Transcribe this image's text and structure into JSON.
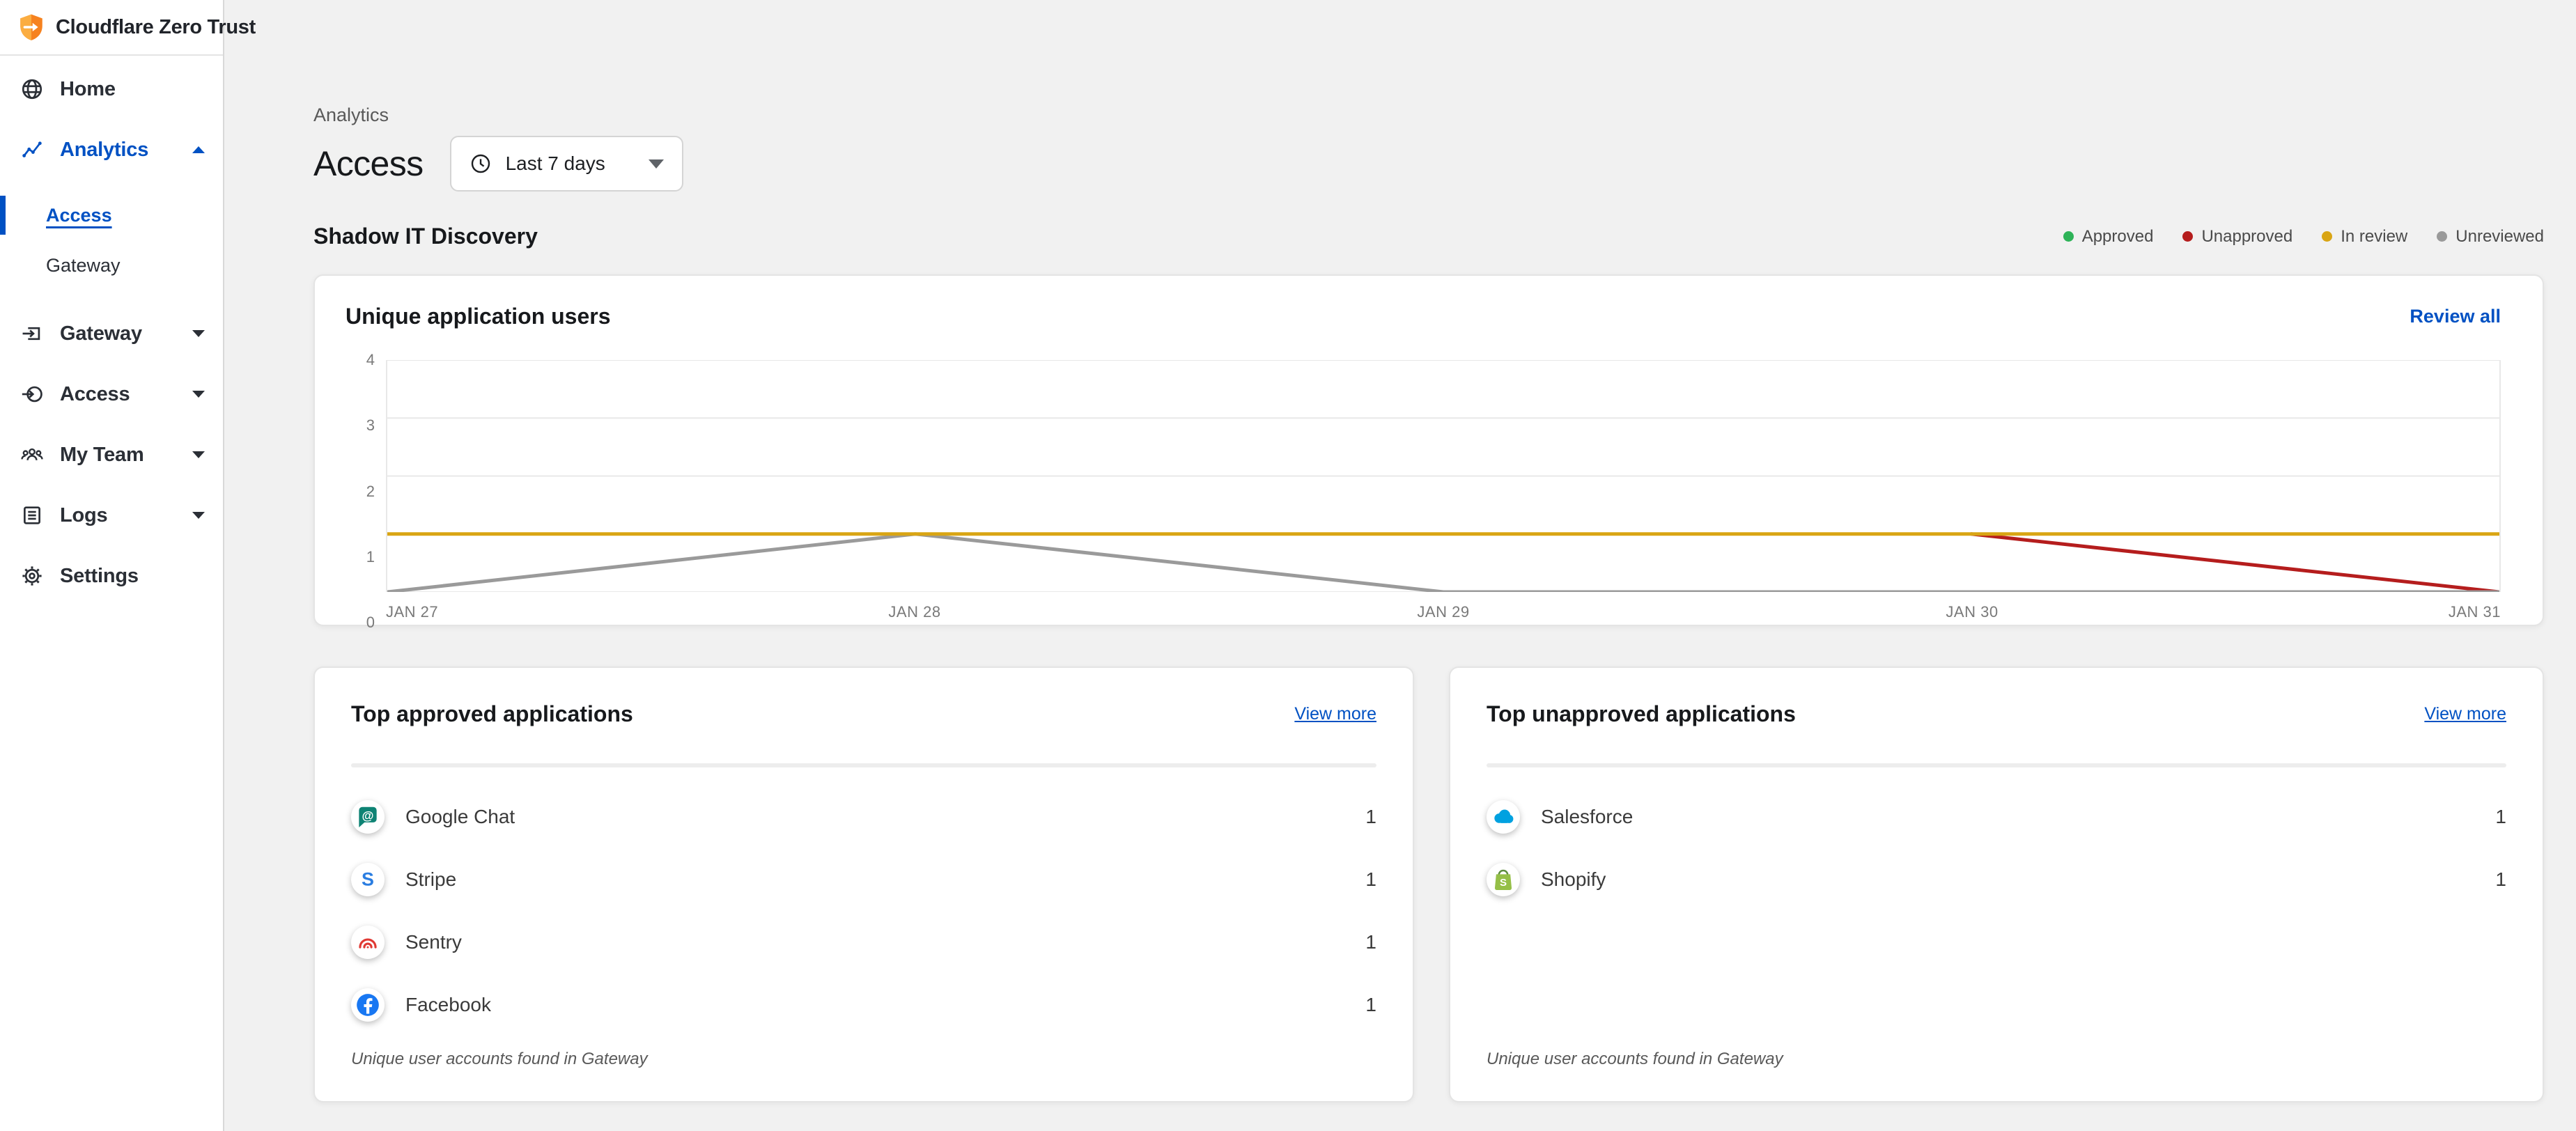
{
  "app": {
    "logo_text": "Cloudflare Zero Trust"
  },
  "colors": {
    "accent_blue": "#0051c3",
    "approved_green": "#2eb358",
    "unapproved_red": "#b51d1d",
    "in_review_yellow": "#d9a514",
    "unreviewed_gray": "#9a9a9a"
  },
  "sidebar": {
    "items": [
      {
        "label": "Home",
        "icon": "globe-icon"
      },
      {
        "label": "Analytics",
        "icon": "analytics-icon",
        "expanded": true,
        "children": [
          {
            "label": "Access",
            "active": true
          },
          {
            "label": "Gateway"
          }
        ]
      },
      {
        "label": "Gateway",
        "icon": "gateway-icon"
      },
      {
        "label": "Access",
        "icon": "access-icon"
      },
      {
        "label": "My Team",
        "icon": "team-icon"
      },
      {
        "label": "Logs",
        "icon": "logs-icon"
      },
      {
        "label": "Settings",
        "icon": "gear-icon"
      }
    ]
  },
  "header": {
    "breadcrumb": "Analytics",
    "title": "Access",
    "time_range": "Last 7 days"
  },
  "shadow_section": {
    "title": "Shadow IT Discovery",
    "legend": [
      {
        "label": "Approved",
        "color": "#2eb358"
      },
      {
        "label": "Unapproved",
        "color": "#b51d1d"
      },
      {
        "label": "In review",
        "color": "#d9a514"
      },
      {
        "label": "Unreviewed",
        "color": "#9a9a9a"
      }
    ]
  },
  "chart_card": {
    "title": "Unique application users",
    "action": "Review all"
  },
  "chart_data": {
    "type": "line",
    "title": "Unique application users",
    "x": [
      "JAN 27",
      "JAN 28",
      "JAN 29",
      "JAN 30",
      "JAN 31"
    ],
    "series": [
      {
        "name": "Approved",
        "color": "#2eb358",
        "values": [
          null,
          null,
          null,
          null,
          null
        ]
      },
      {
        "name": "Unapproved",
        "color": "#b51d1d",
        "values": [
          null,
          null,
          null,
          1,
          0
        ]
      },
      {
        "name": "Unreviewed",
        "color": "#9a9a9a",
        "values": [
          0,
          1,
          0,
          0,
          0
        ]
      },
      {
        "name": "In review",
        "color": "#d9a514",
        "values": [
          1,
          1,
          1,
          1,
          1
        ]
      }
    ],
    "ylim": [
      0,
      4
    ],
    "yticks": [
      0,
      1,
      2,
      3,
      4
    ],
    "grid": true,
    "legend_position": "top-right-outside"
  },
  "approved_card": {
    "title": "Top approved applications",
    "action": "View more",
    "rows": [
      {
        "name": "Google Chat",
        "value": "1",
        "icon": "google-chat-icon"
      },
      {
        "name": "Stripe",
        "value": "1",
        "icon": "stripe-icon"
      },
      {
        "name": "Sentry",
        "value": "1",
        "icon": "sentry-icon"
      },
      {
        "name": "Facebook",
        "value": "1",
        "icon": "facebook-icon"
      }
    ],
    "footnote": "Unique user accounts found in Gateway"
  },
  "unapproved_card": {
    "title": "Top unapproved applications",
    "action": "View more",
    "rows": [
      {
        "name": "Salesforce",
        "value": "1",
        "icon": "salesforce-icon"
      },
      {
        "name": "Shopify",
        "value": "1",
        "icon": "shopify-icon"
      }
    ],
    "footnote": "Unique user accounts found in Gateway"
  }
}
